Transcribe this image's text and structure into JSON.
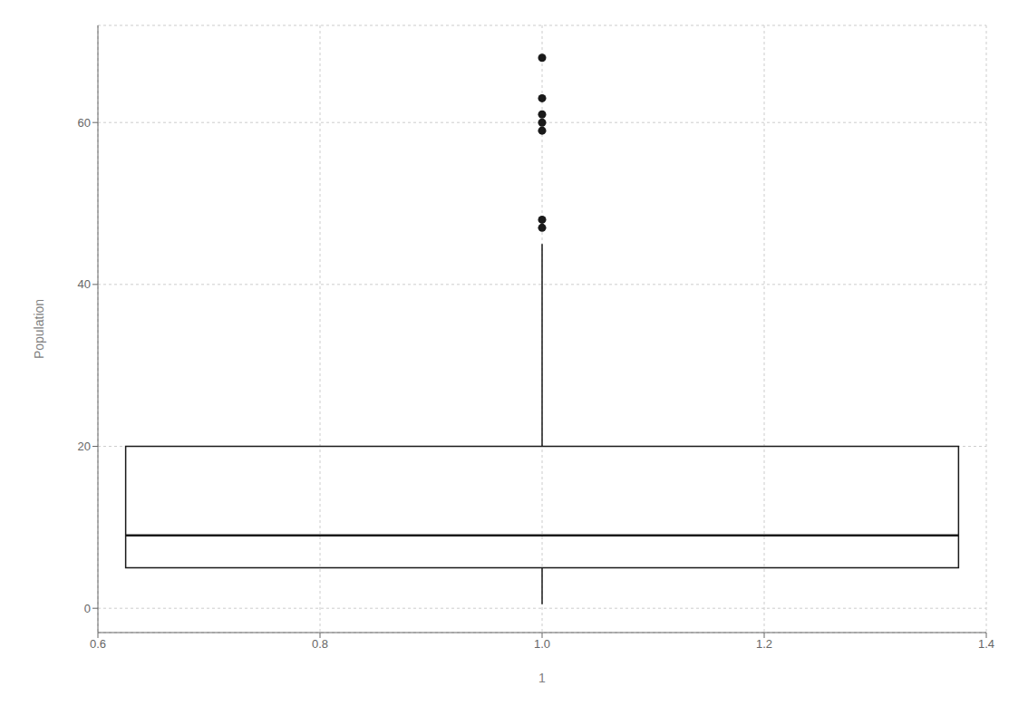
{
  "chart_data": {
    "type": "boxplot",
    "xlabel": "1",
    "ylabel": "Population",
    "x": [
      1
    ],
    "xlim": [
      0.6,
      1.4
    ],
    "xticks": [
      0.6,
      0.8,
      {
        "value": 1.0,
        "label": "1.0"
      },
      1.2,
      1.4
    ],
    "ylim": [
      -3,
      72
    ],
    "yticks": [
      0,
      20,
      40,
      60
    ],
    "grid": true,
    "color": "#1a1a1a",
    "boxes": [
      {
        "q1": 5.0,
        "median": 9.0,
        "q3": 20.0,
        "whisker_low": 0.5,
        "whisker_high": 45.0,
        "outliers": [
          47.0,
          48.0,
          59.0,
          60.0,
          61.0,
          63.0,
          68.0
        ]
      }
    ]
  }
}
